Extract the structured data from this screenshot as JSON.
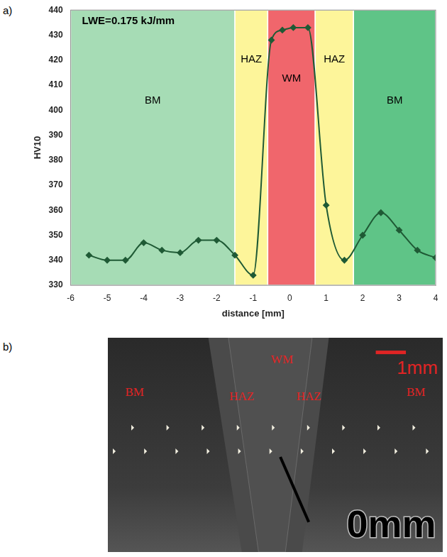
{
  "chart_data": {
    "type": "line",
    "annotation": "LWE=0.175 kJ/mm",
    "x_label": "distance [mm]",
    "y_label": "HV10",
    "x": [
      -5.5,
      -5,
      -4.5,
      -4,
      -3.5,
      -3,
      -2.5,
      -2,
      -1.5,
      -1,
      -0.5,
      -0.2,
      0.1,
      0.5,
      1,
      1.5,
      2,
      2.5,
      3,
      3.5,
      4
    ],
    "values": [
      342,
      340,
      340,
      347,
      344,
      343,
      348,
      348,
      342,
      334,
      428,
      432,
      433,
      433,
      362,
      340,
      350,
      359,
      352,
      344,
      341
    ],
    "color": "#1f5a35",
    "marker": "diamond",
    "zones": [
      {
        "label": "BM",
        "from": -6,
        "to": -1.5,
        "color": "#a6dcb5"
      },
      {
        "label": "HAZ",
        "from": -1.5,
        "to": -0.6,
        "color": "#fdf59a"
      },
      {
        "label": "WM",
        "from": -0.6,
        "to": 0.7,
        "color": "#f0666c"
      },
      {
        "label": "HAZ",
        "from": 0.7,
        "to": 1.75,
        "color": "#fdf59a"
      },
      {
        "label": "BM",
        "from": 1.75,
        "to": 4,
        "color": "#5fc487"
      }
    ],
    "xlim": [
      -6,
      4
    ],
    "xticks": [
      -6,
      -5,
      -4,
      -3,
      -2,
      -1,
      0,
      1,
      2,
      3,
      4
    ],
    "ylim": [
      330,
      440
    ],
    "yticks": [
      330,
      340,
      350,
      360,
      370,
      380,
      390,
      400,
      410,
      420,
      430,
      440
    ],
    "grid": false
  },
  "panel_labels": [
    "a)",
    "b)"
  ],
  "photo": {
    "labels": [
      "BM",
      "HAZ",
      "WM",
      "HAZ",
      "BM"
    ],
    "scale_bar": "1mm",
    "origin_mark": "0mm"
  }
}
